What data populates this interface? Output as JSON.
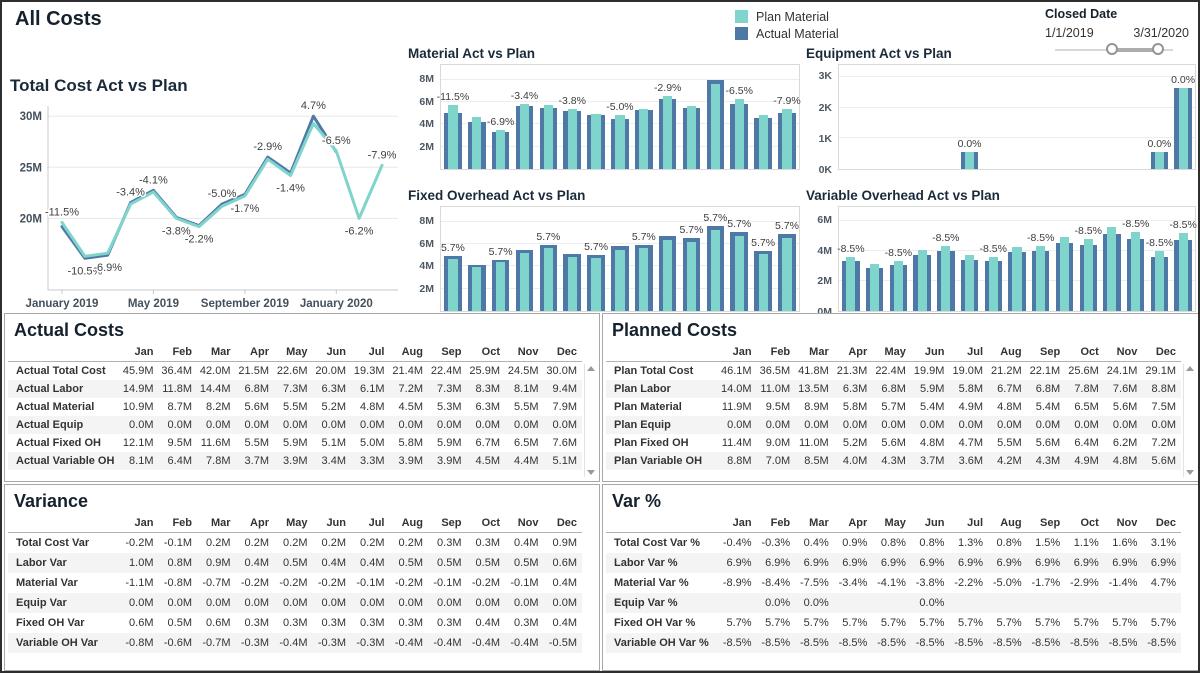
{
  "title": "All Costs",
  "colors": {
    "plan": "#7fd4cb",
    "actual": "#4e79a7"
  },
  "legend": {
    "items": [
      {
        "label": "Plan Material",
        "color_key": "plan"
      },
      {
        "label": "Actual Material",
        "color_key": "actual"
      }
    ]
  },
  "closed_date": {
    "label": "Closed Date",
    "start": "1/1/2019",
    "end": "3/31/2020"
  },
  "chart_data": [
    {
      "id": "total_cost",
      "type": "line",
      "title": "Total Cost Act vs Plan",
      "x": [
        "Jan 2019",
        "Feb 2019",
        "Mar 2019",
        "Apr 2019",
        "May 2019",
        "Jun 2019",
        "Jul 2019",
        "Aug 2019",
        "Sep 2019",
        "Oct 2019",
        "Nov 2019",
        "Dec 2019",
        "Jan 2020",
        "Feb 2020",
        "Mar 2020"
      ],
      "x_tick_labels": [
        {
          "index": 0,
          "label": "January 2019"
        },
        {
          "index": 4,
          "label": "May 2019"
        },
        {
          "index": 8,
          "label": "September 2019"
        },
        {
          "index": 12,
          "label": "January 2020"
        }
      ],
      "unit": "M",
      "ylim": [
        13,
        31
      ],
      "grid": true,
      "legend_position": "top-right-of-dashboard",
      "yticks": [
        {
          "v": 20,
          "label": "20M"
        },
        {
          "v": 25,
          "label": "25M"
        },
        {
          "v": 30,
          "label": "30M"
        }
      ],
      "series": [
        {
          "name": "Actual",
          "color_key": "actual",
          "values": [
            19.2,
            16.1,
            16.4,
            21.55,
            22.75,
            20.1,
            19.3,
            21.4,
            22.35,
            26.0,
            24.45,
            30.0,
            26.5,
            null,
            null
          ]
        },
        {
          "name": "Plan",
          "color_key": "plan",
          "values": [
            19.6,
            16.3,
            16.6,
            21.4,
            22.6,
            20.0,
            19.2,
            21.2,
            22.2,
            25.8,
            24.2,
            29.3,
            26.6,
            20.0,
            25.2
          ]
        }
      ],
      "point_labels": [
        {
          "index": 0,
          "text": "-11.5%",
          "pos": "above"
        },
        {
          "index": 1,
          "text": "-10.5%",
          "pos": "below"
        },
        {
          "index": 2,
          "text": "-6.9%",
          "pos": "below"
        },
        {
          "index": 3,
          "text": "-3.4%",
          "pos": "above"
        },
        {
          "index": 4,
          "text": "-4.1%",
          "pos": "above"
        },
        {
          "index": 5,
          "text": "-3.8%",
          "pos": "below"
        },
        {
          "index": 6,
          "text": "-2.2%",
          "pos": "below"
        },
        {
          "index": 7,
          "text": "-5.0%",
          "pos": "above"
        },
        {
          "index": 8,
          "text": "-1.7%",
          "pos": "below"
        },
        {
          "index": 9,
          "text": "-2.9%",
          "pos": "above"
        },
        {
          "index": 10,
          "text": "-1.4%",
          "pos": "below"
        },
        {
          "index": 11,
          "text": "4.7%",
          "pos": "above"
        },
        {
          "index": 12,
          "text": "-6.5%",
          "pos": "above"
        },
        {
          "index": 13,
          "text": "-6.2%",
          "pos": "below"
        },
        {
          "index": 14,
          "text": "-7.9%",
          "pos": "above"
        }
      ]
    },
    {
      "id": "material",
      "type": "bar",
      "title": "Material Act vs Plan",
      "unit": "M",
      "ymax": 9.3,
      "yticks": [
        {
          "v": 2,
          "label": "2M"
        },
        {
          "v": 4,
          "label": "4M"
        },
        {
          "v": 6,
          "label": "6M"
        },
        {
          "v": 8,
          "label": "8M"
        }
      ],
      "series": [
        {
          "name": "Actual Material",
          "color_key": "actual",
          "values": [
            5.05,
            4.2,
            3.3,
            5.6,
            5.5,
            5.2,
            4.8,
            4.5,
            5.3,
            6.3,
            5.5,
            7.95,
            5.85,
            4.55,
            5.05
          ]
        },
        {
          "name": "Plan Material",
          "color_key": "plan",
          "values": [
            5.7,
            4.65,
            3.45,
            5.8,
            5.7,
            5.4,
            4.9,
            4.8,
            5.4,
            6.5,
            5.6,
            7.6,
            6.25,
            4.8,
            5.4
          ]
        }
      ],
      "bar_labels": [
        "-11.5%",
        null,
        "-6.9%",
        "-3.4%",
        null,
        "-3.8%",
        null,
        "-5.0%",
        null,
        "-2.9%",
        null,
        null,
        "-6.5%",
        null,
        "-7.9%"
      ]
    },
    {
      "id": "equipment",
      "type": "bar",
      "title": "Equipment Act vs Plan",
      "unit": "K",
      "ymax": 3.4,
      "yticks": [
        {
          "v": 0,
          "label": "0K"
        },
        {
          "v": 1,
          "label": "1K"
        },
        {
          "v": 2,
          "label": "2K"
        },
        {
          "v": 3,
          "label": "3K"
        }
      ],
      "series": [
        {
          "name": "Actual",
          "color_key": "actual",
          "values": [
            0,
            0,
            0,
            0,
            0,
            0.55,
            0,
            0,
            0,
            0,
            0,
            0,
            0,
            0.55,
            2.65
          ]
        },
        {
          "name": "Plan",
          "color_key": "plan",
          "values": [
            0,
            0,
            0,
            0,
            0,
            0.55,
            0,
            0,
            0,
            0,
            0,
            0,
            0,
            0.55,
            2.65
          ]
        }
      ],
      "bar_labels": [
        null,
        null,
        null,
        null,
        null,
        "0.0%",
        null,
        null,
        null,
        null,
        null,
        null,
        null,
        "0.0%",
        "0.0%"
      ]
    },
    {
      "id": "fixed_oh",
      "type": "bar",
      "title": "Fixed Overhead Act vs Plan",
      "unit": "M",
      "ymax": 9.3,
      "yticks": [
        {
          "v": 2,
          "label": "2M"
        },
        {
          "v": 4,
          "label": "4M"
        },
        {
          "v": 6,
          "label": "6M"
        },
        {
          "v": 8,
          "label": "8M"
        }
      ],
      "series": [
        {
          "name": "Actual",
          "color_key": "actual",
          "values": [
            4.9,
            4.1,
            4.6,
            5.5,
            5.9,
            5.1,
            5.0,
            5.8,
            5.9,
            6.7,
            6.5,
            7.6,
            7.1,
            5.4,
            6.9
          ]
        },
        {
          "name": "Plan",
          "color_key": "plan",
          "values": [
            4.65,
            3.9,
            4.35,
            5.2,
            5.6,
            4.85,
            4.75,
            5.5,
            5.6,
            6.35,
            6.15,
            7.2,
            6.7,
            5.1,
            6.55
          ]
        }
      ],
      "bar_labels": [
        "5.7%",
        null,
        "5.7%",
        null,
        "5.7%",
        null,
        "5.7%",
        null,
        "5.7%",
        null,
        "5.7%",
        "5.7%",
        "5.7%",
        "5.7%",
        "5.7%"
      ]
    },
    {
      "id": "variable_oh",
      "type": "bar",
      "title": "Variable Overhead Act vs Plan",
      "unit": "M",
      "ymax": 6.9,
      "yticks": [
        {
          "v": 0,
          "label": "0M"
        },
        {
          "v": 2,
          "label": "2M"
        },
        {
          "v": 4,
          "label": "4M"
        },
        {
          "v": 6,
          "label": "6M"
        }
      ],
      "series": [
        {
          "name": "Actual",
          "color_key": "actual",
          "values": [
            3.3,
            2.85,
            3.05,
            3.7,
            3.95,
            3.4,
            3.3,
            3.9,
            3.95,
            4.5,
            4.4,
            5.1,
            4.8,
            3.6,
            4.7
          ]
        },
        {
          "name": "Plan",
          "color_key": "plan",
          "values": [
            3.6,
            3.1,
            3.35,
            4.05,
            4.3,
            3.7,
            3.6,
            4.25,
            4.3,
            4.9,
            4.8,
            5.6,
            5.25,
            3.95,
            5.15
          ]
        }
      ],
      "bar_labels": [
        "-8.5%",
        null,
        "-8.5%",
        null,
        "-8.5%",
        null,
        "-8.5%",
        null,
        "-8.5%",
        null,
        "-8.5%",
        null,
        "-8.5%",
        "-8.5%",
        "-8.5%"
      ]
    }
  ],
  "tables": [
    {
      "id": "actual",
      "title": "Actual Costs",
      "scrollbar": true,
      "months": [
        "Jan",
        "Feb",
        "Mar",
        "Apr",
        "May",
        "Jun",
        "Jul",
        "Aug",
        "Sep",
        "Oct",
        "Nov",
        "Dec"
      ],
      "rows": [
        {
          "label": "Actual Total Cost",
          "values": [
            "45.9M",
            "36.4M",
            "42.0M",
            "21.5M",
            "22.6M",
            "20.0M",
            "19.3M",
            "21.4M",
            "22.4M",
            "25.9M",
            "24.5M",
            "30.0M"
          ]
        },
        {
          "label": "Actual Labor",
          "values": [
            "14.9M",
            "11.8M",
            "14.4M",
            "6.8M",
            "7.3M",
            "6.3M",
            "6.1M",
            "7.2M",
            "7.3M",
            "8.3M",
            "8.1M",
            "9.4M"
          ]
        },
        {
          "label": "Actual Material",
          "values": [
            "10.9M",
            "8.7M",
            "8.2M",
            "5.6M",
            "5.5M",
            "5.2M",
            "4.8M",
            "4.5M",
            "5.3M",
            "6.3M",
            "5.5M",
            "7.9M"
          ]
        },
        {
          "label": "Actual Equip",
          "values": [
            "0.0M",
            "0.0M",
            "0.0M",
            "0.0M",
            "0.0M",
            "0.0M",
            "0.0M",
            "0.0M",
            "0.0M",
            "0.0M",
            "0.0M",
            "0.0M"
          ]
        },
        {
          "label": "Actual Fixed OH",
          "values": [
            "12.1M",
            "9.5M",
            "11.6M",
            "5.5M",
            "5.9M",
            "5.1M",
            "5.0M",
            "5.8M",
            "5.9M",
            "6.7M",
            "6.5M",
            "7.6M"
          ]
        },
        {
          "label": "Actual Variable OH",
          "values": [
            "8.1M",
            "6.4M",
            "7.8M",
            "3.7M",
            "3.9M",
            "3.4M",
            "3.3M",
            "3.9M",
            "3.9M",
            "4.5M",
            "4.4M",
            "5.1M"
          ]
        }
      ]
    },
    {
      "id": "planned",
      "title": "Planned Costs",
      "scrollbar": true,
      "months": [
        "Jan",
        "Feb",
        "Mar",
        "Apr",
        "May",
        "Jun",
        "Jul",
        "Aug",
        "Sep",
        "Oct",
        "Nov",
        "Dec"
      ],
      "rows": [
        {
          "label": "Plan Total Cost",
          "values": [
            "46.1M",
            "36.5M",
            "41.8M",
            "21.3M",
            "22.4M",
            "19.9M",
            "19.0M",
            "21.2M",
            "22.1M",
            "25.6M",
            "24.1M",
            "29.1M"
          ]
        },
        {
          "label": "Plan Labor",
          "values": [
            "14.0M",
            "11.0M",
            "13.5M",
            "6.3M",
            "6.8M",
            "5.9M",
            "5.8M",
            "6.7M",
            "6.8M",
            "7.8M",
            "7.6M",
            "8.8M"
          ]
        },
        {
          "label": "Plan Material",
          "values": [
            "11.9M",
            "9.5M",
            "8.9M",
            "5.8M",
            "5.7M",
            "5.4M",
            "4.9M",
            "4.8M",
            "5.4M",
            "6.5M",
            "5.6M",
            "7.5M"
          ]
        },
        {
          "label": "Plan Equip",
          "values": [
            "0.0M",
            "0.0M",
            "0.0M",
            "0.0M",
            "0.0M",
            "0.0M",
            "0.0M",
            "0.0M",
            "0.0M",
            "0.0M",
            "0.0M",
            "0.0M"
          ]
        },
        {
          "label": "Plan Fixed OH",
          "values": [
            "11.4M",
            "9.0M",
            "11.0M",
            "5.2M",
            "5.6M",
            "4.8M",
            "4.7M",
            "5.5M",
            "5.6M",
            "6.4M",
            "6.2M",
            "7.2M"
          ]
        },
        {
          "label": "Plan Variable OH",
          "values": [
            "8.8M",
            "7.0M",
            "8.5M",
            "4.0M",
            "4.3M",
            "3.7M",
            "3.6M",
            "4.2M",
            "4.3M",
            "4.9M",
            "4.8M",
            "5.6M"
          ]
        }
      ]
    },
    {
      "id": "variance",
      "title": "Variance",
      "scrollbar": false,
      "months": [
        "Jan",
        "Feb",
        "Mar",
        "Apr",
        "May",
        "Jun",
        "Jul",
        "Aug",
        "Sep",
        "Oct",
        "Nov",
        "Dec"
      ],
      "rows": [
        {
          "label": "Total Cost Var",
          "values": [
            "-0.2M",
            "-0.1M",
            "0.2M",
            "0.2M",
            "0.2M",
            "0.2M",
            "0.2M",
            "0.2M",
            "0.3M",
            "0.3M",
            "0.4M",
            "0.9M"
          ]
        },
        {
          "label": "Labor Var",
          "values": [
            "1.0M",
            "0.8M",
            "0.9M",
            "0.4M",
            "0.5M",
            "0.4M",
            "0.4M",
            "0.5M",
            "0.5M",
            "0.5M",
            "0.5M",
            "0.6M"
          ]
        },
        {
          "label": "Material Var",
          "values": [
            "-1.1M",
            "-0.8M",
            "-0.7M",
            "-0.2M",
            "-0.2M",
            "-0.2M",
            "-0.1M",
            "-0.2M",
            "-0.1M",
            "-0.2M",
            "-0.1M",
            "0.4M"
          ]
        },
        {
          "label": "Equip Var",
          "values": [
            "0.0M",
            "0.0M",
            "0.0M",
            "0.0M",
            "0.0M",
            "0.0M",
            "0.0M",
            "0.0M",
            "0.0M",
            "0.0M",
            "0.0M",
            "0.0M"
          ]
        },
        {
          "label": "Fixed OH Var",
          "values": [
            "0.6M",
            "0.5M",
            "0.6M",
            "0.3M",
            "0.3M",
            "0.3M",
            "0.3M",
            "0.3M",
            "0.3M",
            "0.4M",
            "0.3M",
            "0.4M"
          ]
        },
        {
          "label": "Variable OH Var",
          "values": [
            "-0.8M",
            "-0.6M",
            "-0.7M",
            "-0.3M",
            "-0.4M",
            "-0.3M",
            "-0.3M",
            "-0.4M",
            "-0.4M",
            "-0.4M",
            "-0.4M",
            "-0.5M"
          ]
        }
      ]
    },
    {
      "id": "varpct",
      "title": "Var %",
      "scrollbar": false,
      "months": [
        "Jan",
        "Feb",
        "Mar",
        "Apr",
        "May",
        "Jun",
        "Jul",
        "Aug",
        "Sep",
        "Oct",
        "Nov",
        "Dec"
      ],
      "rows": [
        {
          "label": "Total Cost Var %",
          "values": [
            "-0.4%",
            "-0.3%",
            "0.4%",
            "0.9%",
            "0.8%",
            "0.8%",
            "1.3%",
            "0.8%",
            "1.5%",
            "1.1%",
            "1.6%",
            "3.1%"
          ]
        },
        {
          "label": "Labor Var %",
          "values": [
            "6.9%",
            "6.9%",
            "6.9%",
            "6.9%",
            "6.9%",
            "6.9%",
            "6.9%",
            "6.9%",
            "6.9%",
            "6.9%",
            "6.9%",
            "6.9%"
          ]
        },
        {
          "label": "Material Var %",
          "values": [
            "-8.9%",
            "-8.4%",
            "-7.5%",
            "-3.4%",
            "-4.1%",
            "-3.8%",
            "-2.2%",
            "-5.0%",
            "-1.7%",
            "-2.9%",
            "-1.4%",
            "4.7%"
          ]
        },
        {
          "label": "Equip Var %",
          "values": [
            "",
            "0.0%",
            "0.0%",
            "",
            "",
            "0.0%",
            "",
            "",
            "",
            "",
            "",
            ""
          ]
        },
        {
          "label": "Fixed OH Var %",
          "values": [
            "5.7%",
            "5.7%",
            "5.7%",
            "5.7%",
            "5.7%",
            "5.7%",
            "5.7%",
            "5.7%",
            "5.7%",
            "5.7%",
            "5.7%",
            "5.7%"
          ]
        },
        {
          "label": "Variable OH Var %",
          "values": [
            "-8.5%",
            "-8.5%",
            "-8.5%",
            "-8.5%",
            "-8.5%",
            "-8.5%",
            "-8.5%",
            "-8.5%",
            "-8.5%",
            "-8.5%",
            "-8.5%",
            "-8.5%"
          ]
        }
      ]
    }
  ]
}
